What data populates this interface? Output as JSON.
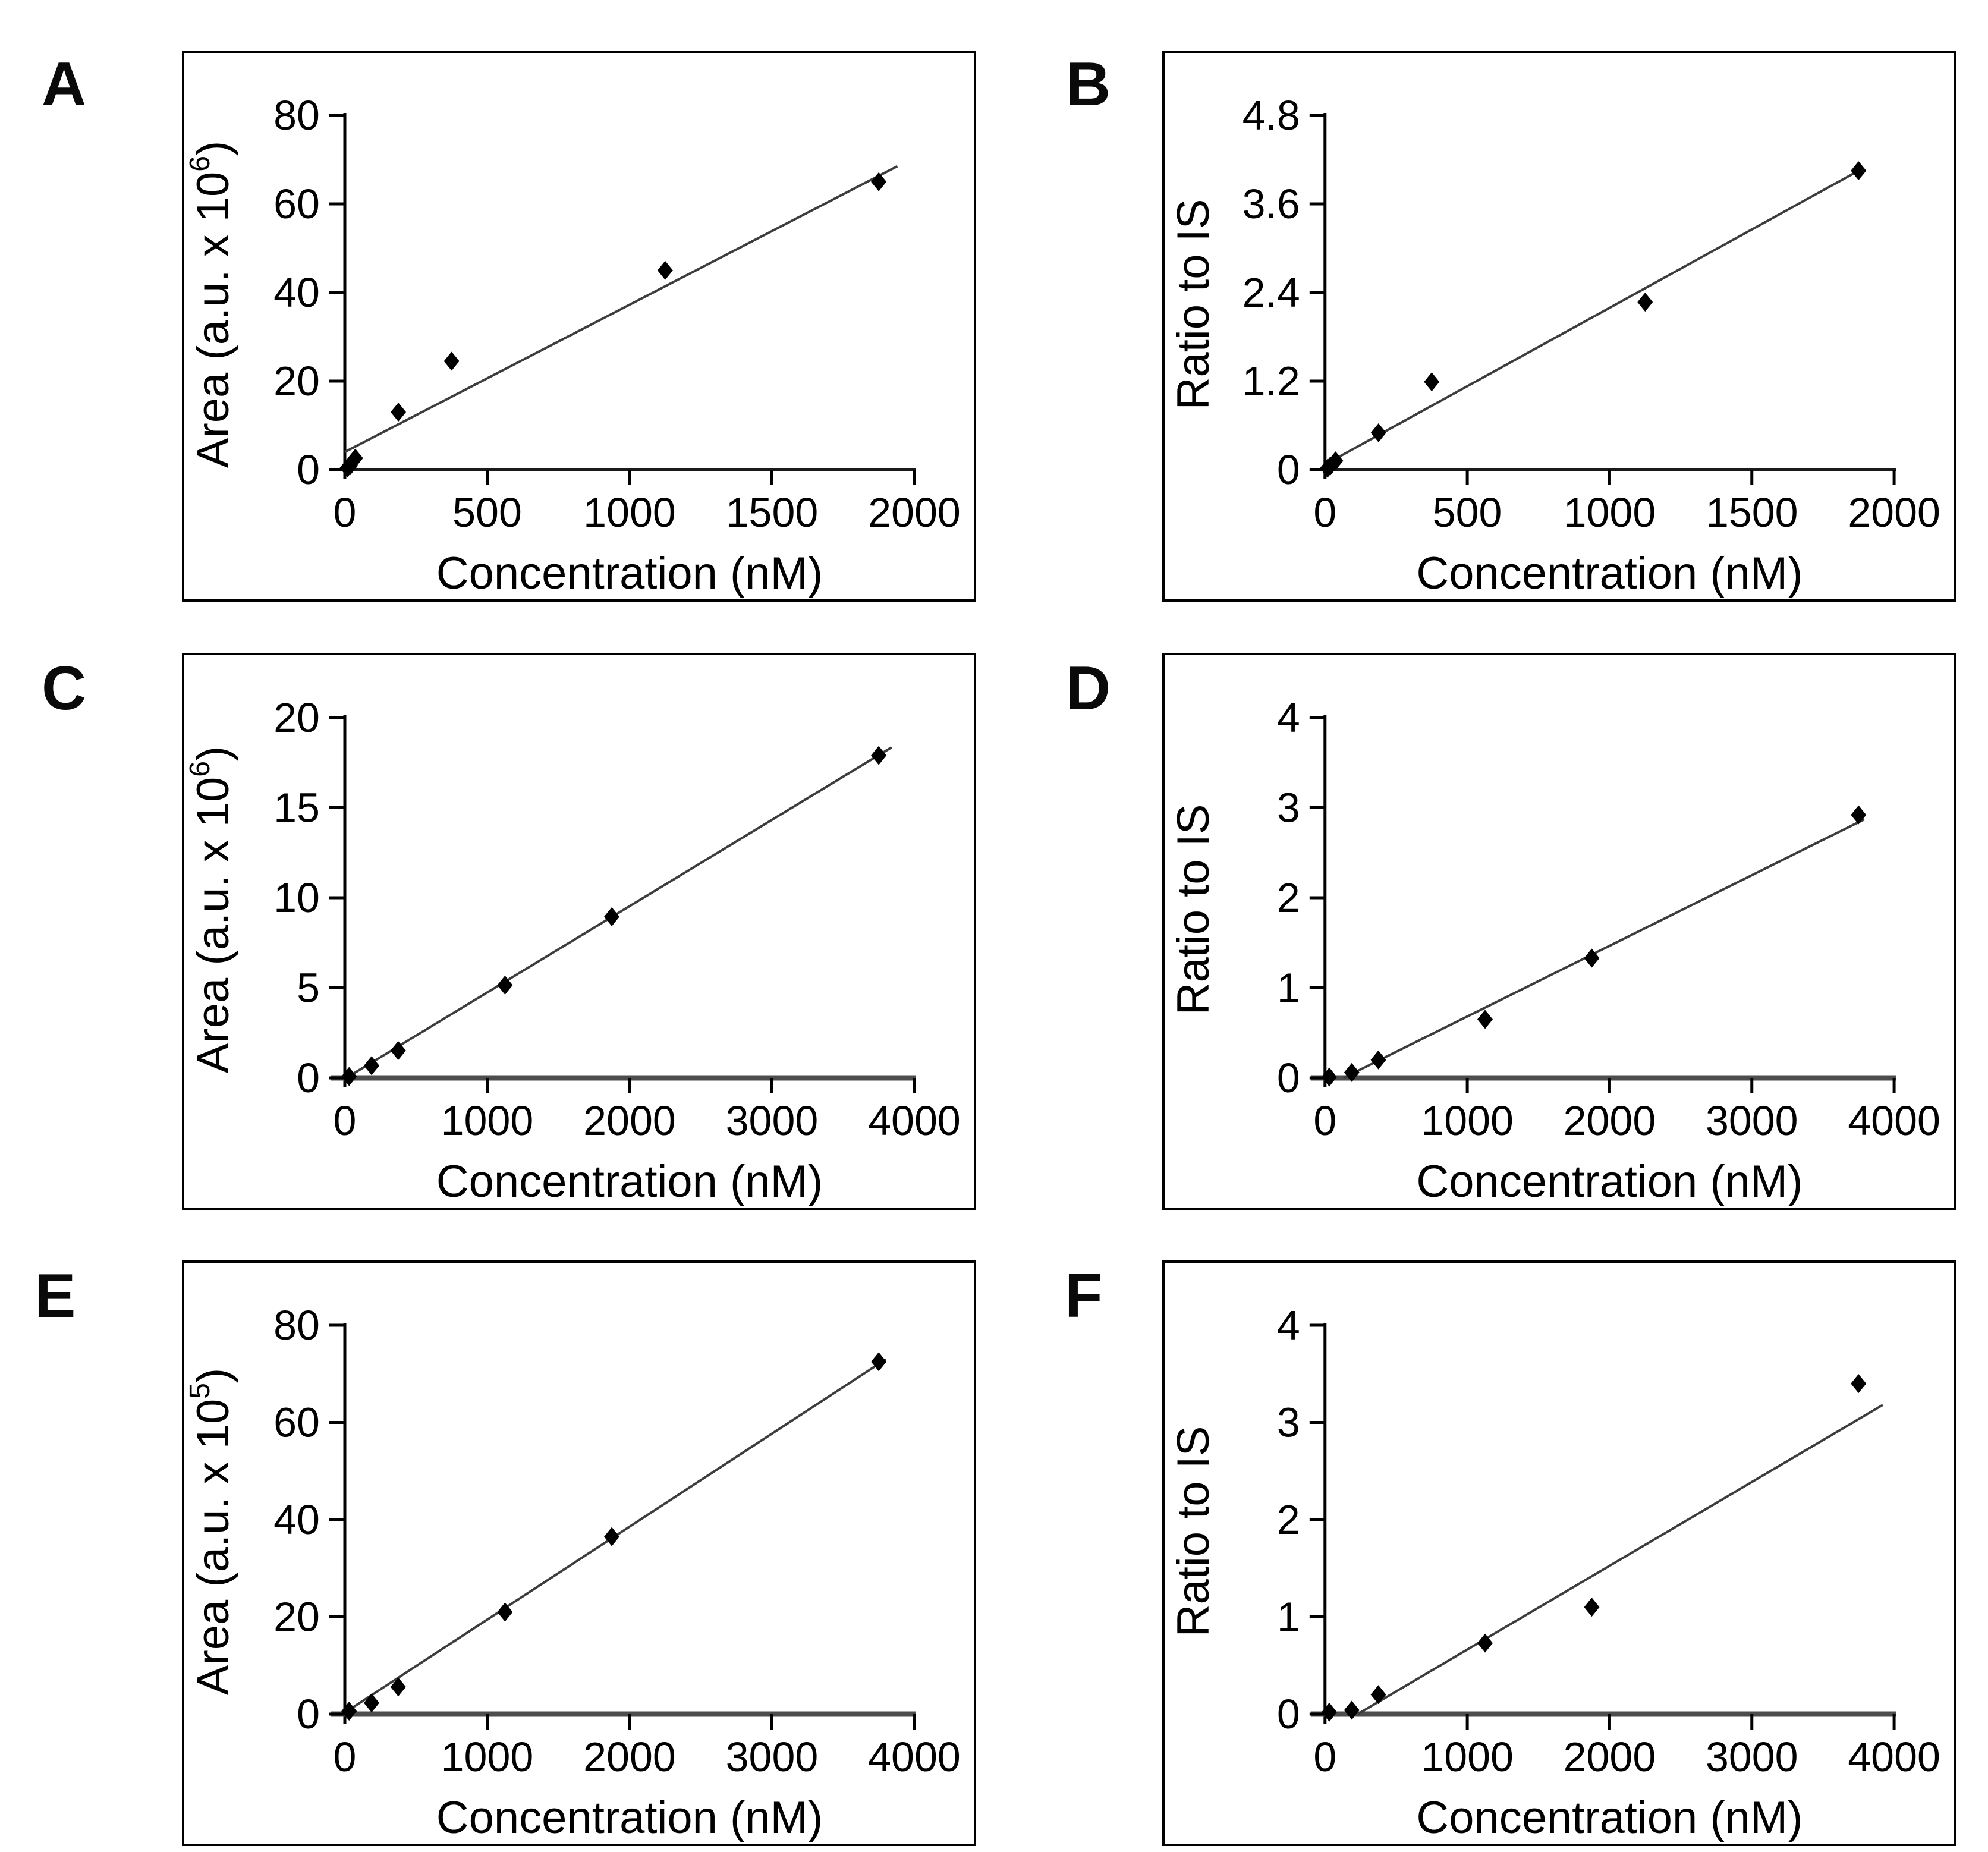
{
  "chart_data": [
    {
      "panel": "A",
      "type": "scatter",
      "xlabel": "Concentration (nM)",
      "ylabel": "Area (a.u. x 10^6)",
      "xlim": [
        0,
        2000
      ],
      "ylim": [
        0,
        80
      ],
      "xticks": [
        0,
        500,
        1000,
        1500,
        2000
      ],
      "yticks": [
        0,
        20,
        40,
        60,
        80
      ],
      "points": [
        [
          9,
          0.4
        ],
        [
          19,
          0.9
        ],
        [
          37,
          2.6
        ],
        [
          188,
          13
        ],
        [
          375,
          24.5
        ],
        [
          1125,
          45
        ],
        [
          1875,
          65
        ]
      ],
      "trendline": {
        "x1": 0,
        "y1": 4.0,
        "x2": 1940,
        "y2": 68.5
      },
      "marker": "diamond",
      "marker_color": "#000000",
      "line_color": "#3d3d3d",
      "x_axis_color": "#1a1a1a",
      "x_axis_width": 5,
      "grid": "off",
      "legend": "none"
    },
    {
      "panel": "B",
      "type": "scatter",
      "xlabel": "Concentration (nM)",
      "ylabel": "Ratio to IS",
      "xlim": [
        0,
        2000
      ],
      "ylim": [
        0,
        4.8
      ],
      "xticks": [
        0,
        500,
        1000,
        1500,
        2000
      ],
      "yticks": [
        0,
        1.2,
        2.4,
        3.6,
        4.8
      ],
      "points": [
        [
          9,
          0.02
        ],
        [
          19,
          0.05
        ],
        [
          37,
          0.12
        ],
        [
          188,
          0.5
        ],
        [
          375,
          1.19
        ],
        [
          1125,
          2.27
        ],
        [
          1875,
          4.05
        ]
      ],
      "trendline": {
        "x1": 0,
        "y1": 0.07,
        "x2": 1880,
        "y2": 4.06
      },
      "marker": "diamond",
      "marker_color": "#000000",
      "line_color": "#3d3d3d",
      "x_axis_color": "#1a1a1a",
      "x_axis_width": 5,
      "grid": "off",
      "legend": "none"
    },
    {
      "panel": "C",
      "type": "scatter",
      "xlabel": "Concentration (nM)",
      "ylabel": "Area (a.u. x 10^6)",
      "xlim": [
        0,
        4000
      ],
      "ylim": [
        0,
        20
      ],
      "xticks": [
        0,
        1000,
        2000,
        3000,
        4000
      ],
      "yticks": [
        0,
        5,
        10,
        15,
        20
      ],
      "points": [
        [
          30,
          0.08
        ],
        [
          188,
          0.68
        ],
        [
          375,
          1.52
        ],
        [
          1125,
          5.15
        ],
        [
          1875,
          8.95
        ],
        [
          3750,
          17.9
        ]
      ],
      "trendline": {
        "x1": 0,
        "y1": -0.05,
        "x2": 3840,
        "y2": 18.35
      },
      "marker": "diamond",
      "marker_color": "#000000",
      "line_color": "#3d3d3d",
      "x_axis_color": "#4d4d4d",
      "x_axis_width": 9,
      "grid": "off",
      "legend": "none"
    },
    {
      "panel": "D",
      "type": "scatter",
      "xlabel": "Concentration (nM)",
      "ylabel": "Ratio to IS",
      "xlim": [
        0,
        4000
      ],
      "ylim": [
        0,
        4
      ],
      "xticks": [
        0,
        1000,
        2000,
        3000,
        4000
      ],
      "yticks": [
        0,
        1,
        2,
        3,
        4
      ],
      "points": [
        [
          30,
          0.01
        ],
        [
          188,
          0.06
        ],
        [
          375,
          0.2
        ],
        [
          1125,
          0.65
        ],
        [
          1875,
          1.33
        ],
        [
          3750,
          2.92
        ]
      ],
      "trendline": {
        "x1": 130,
        "y1": 0,
        "x2": 3790,
        "y2": 2.87
      },
      "marker": "diamond",
      "marker_color": "#000000",
      "line_color": "#3d3d3d",
      "x_axis_color": "#4d4d4d",
      "x_axis_width": 9,
      "grid": "off",
      "legend": "none"
    },
    {
      "panel": "E",
      "type": "scatter",
      "xlabel": "Concentration (nM)",
      "ylabel": "Area (a.u. x 10^5)",
      "xlim": [
        0,
        4000
      ],
      "ylim": [
        0,
        80
      ],
      "xticks": [
        0,
        1000,
        2000,
        3000,
        4000
      ],
      "yticks": [
        0,
        20,
        40,
        60,
        80
      ],
      "points": [
        [
          30,
          0.6
        ],
        [
          188,
          2.3
        ],
        [
          375,
          5.6
        ],
        [
          1125,
          21
        ],
        [
          1875,
          36.5
        ],
        [
          3750,
          72.5
        ]
      ],
      "trendline": {
        "x1": 0,
        "y1": 0.3,
        "x2": 3800,
        "y2": 73.0
      },
      "marker": "diamond",
      "marker_color": "#000000",
      "line_color": "#3d3d3d",
      "x_axis_color": "#4d4d4d",
      "x_axis_width": 9,
      "grid": "off",
      "legend": "none"
    },
    {
      "panel": "F",
      "type": "scatter",
      "xlabel": "Concentration (nM)",
      "ylabel": "Ratio to IS",
      "xlim": [
        0,
        4000
      ],
      "ylim": [
        0,
        4
      ],
      "xticks": [
        0,
        1000,
        2000,
        3000,
        4000
      ],
      "yticks": [
        0,
        1,
        2,
        3,
        4
      ],
      "points": [
        [
          30,
          0.02
        ],
        [
          188,
          0.04
        ],
        [
          375,
          0.2
        ],
        [
          1125,
          0.73
        ],
        [
          1875,
          1.1
        ],
        [
          3750,
          3.4
        ]
      ],
      "trendline": {
        "x1": 230,
        "y1": 0,
        "x2": 3920,
        "y2": 3.18
      },
      "marker": "diamond",
      "marker_color": "#000000",
      "line_color": "#3d3d3d",
      "x_axis_color": "#4d4d4d",
      "x_axis_width": 9,
      "grid": "off",
      "legend": "none"
    }
  ]
}
